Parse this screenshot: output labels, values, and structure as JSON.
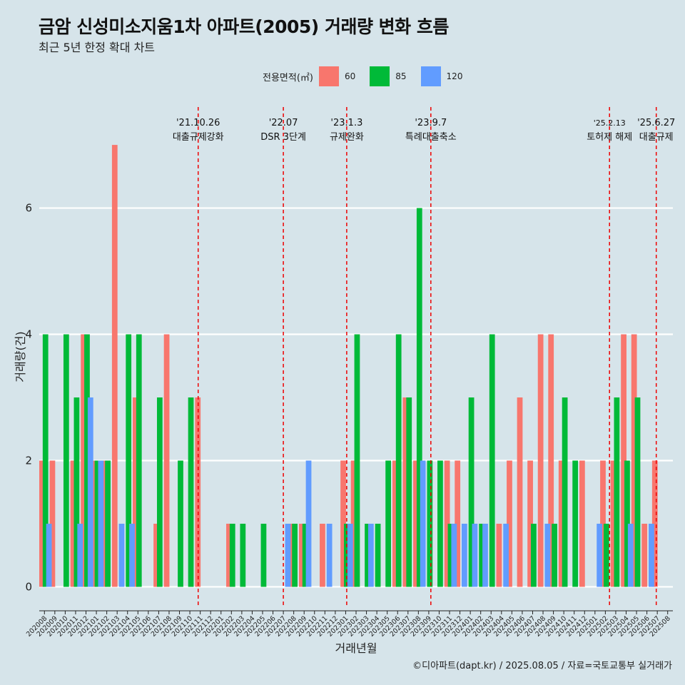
{
  "title": "금암 신성미소지움1차 아파트(2005) 거래량 변화 흐름",
  "subtitle": "최근 5년 한정 확대 차트",
  "caption": "©디아파트(dapt.kr) / 2025.08.05 / 자료=국토교통부 실거래가",
  "legend": {
    "title": "전용면적(㎡)",
    "items": [
      {
        "label": "60",
        "color": "#f8766d"
      },
      {
        "label": "85",
        "color": "#00ba38"
      },
      {
        "label": "120",
        "color": "#619cff"
      }
    ]
  },
  "chart_data": {
    "type": "bar",
    "xlabel": "거래년월",
    "ylabel": "거래량(건)",
    "ylim": [
      -0.3,
      7.6
    ],
    "yticks": [
      0,
      2,
      4,
      6
    ],
    "grid": true,
    "legend_position": "top",
    "categories": [
      "202008",
      "202009",
      "202010",
      "202011",
      "202012",
      "202101",
      "202102",
      "202103",
      "202104",
      "202105",
      "202106",
      "202107",
      "202108",
      "202109",
      "202110",
      "202111",
      "202112",
      "202201",
      "202202",
      "202203",
      "202204",
      "202205",
      "202206",
      "202207",
      "202208",
      "202209",
      "202210",
      "202211",
      "202212",
      "202301",
      "202302",
      "202303",
      "202304",
      "202305",
      "202306",
      "202307",
      "202308",
      "202309",
      "202310",
      "202311",
      "202312",
      "202401",
      "202402",
      "202403",
      "202404",
      "202405",
      "202406",
      "202407",
      "202408",
      "202409",
      "202410",
      "202411",
      "202412",
      "202501",
      "202502",
      "202503",
      "202504",
      "202505",
      "202506",
      "202507",
      "202508"
    ],
    "series": [
      {
        "name": "60",
        "color": "#f8766d",
        "values": [
          2,
          2,
          0,
          2,
          4,
          2,
          2,
          7,
          0,
          3,
          0,
          1,
          4,
          0,
          0,
          3,
          0,
          0,
          1,
          0,
          0,
          0,
          0,
          0,
          1,
          1,
          0,
          1,
          0,
          2,
          2,
          0,
          0,
          0,
          2,
          3,
          2,
          0,
          0,
          2,
          2,
          0,
          0,
          0,
          1,
          2,
          3,
          2,
          4,
          4,
          2,
          0,
          2,
          0,
          2,
          2,
          4,
          4,
          1,
          2,
          0
        ]
      },
      {
        "name": "85",
        "color": "#00ba38",
        "values": [
          4,
          0,
          4,
          3,
          4,
          2,
          2,
          0,
          4,
          4,
          0,
          3,
          0,
          2,
          3,
          0,
          0,
          0,
          1,
          1,
          0,
          1,
          0,
          0,
          1,
          1,
          0,
          0,
          0,
          1,
          4,
          1,
          1,
          2,
          4,
          3,
          6,
          2,
          2,
          1,
          0,
          3,
          1,
          4,
          0,
          0,
          0,
          1,
          0,
          1,
          3,
          2,
          0,
          0,
          1,
          3,
          2,
          3,
          0,
          0,
          0
        ]
      },
      {
        "name": "120",
        "color": "#619cff",
        "values": [
          1,
          0,
          0,
          1,
          3,
          2,
          0,
          1,
          1,
          0,
          0,
          0,
          0,
          0,
          0,
          0,
          0,
          0,
          0,
          0,
          0,
          0,
          0,
          1,
          0,
          2,
          0,
          1,
          0,
          1,
          0,
          1,
          0,
          0,
          0,
          0,
          2,
          0,
          0,
          1,
          1,
          1,
          1,
          0,
          1,
          0,
          0,
          0,
          1,
          0,
          0,
          0,
          0,
          1,
          0,
          0,
          1,
          0,
          1,
          0,
          0
        ]
      }
    ],
    "events": [
      {
        "date": "'21.10.26",
        "label": "대출규제강화",
        "index": 14.8
      },
      {
        "date": "'22.07",
        "label": "DSR 3단계",
        "index": 23.0
      },
      {
        "date": "'23.1.3",
        "label": "규제완화",
        "index": 29.1
      },
      {
        "date": "'23.9.7",
        "label": "특례대출축소",
        "index": 37.2
      },
      {
        "date": "'25.2.13",
        "label": "토허제 해제",
        "index": 54.4
      },
      {
        "date": "'25.6.27",
        "label": "대출규제",
        "index": 58.9
      }
    ]
  }
}
